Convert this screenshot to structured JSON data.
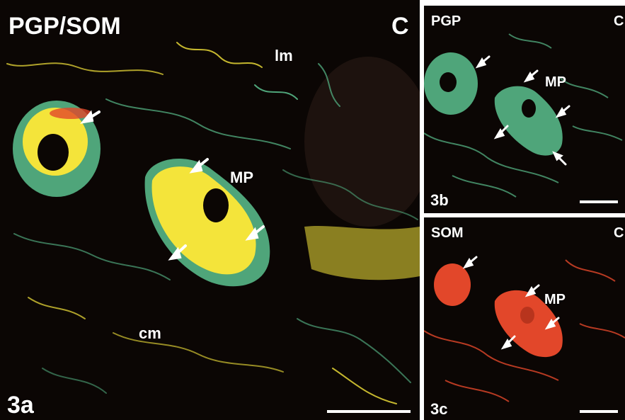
{
  "panels": {
    "a": {
      "title": "PGP/SOM",
      "corner": "C",
      "labels": {
        "lm": "lm",
        "mp": "MP",
        "cm": "cm"
      },
      "figure_label": "3a"
    },
    "b": {
      "title": "PGP",
      "corner": "C",
      "labels": {
        "mp": "MP"
      },
      "figure_label": "3b"
    },
    "c": {
      "title": "SOM",
      "corner": "C",
      "labels": {
        "mp": "MP"
      },
      "figure_label": "3c"
    }
  },
  "colors": {
    "background": "#0b0604",
    "pgp_green": "#4fa57a",
    "som_red": "#e2472a",
    "colocalized_yellow": "#f4e43a",
    "divider": "#ffffff"
  }
}
